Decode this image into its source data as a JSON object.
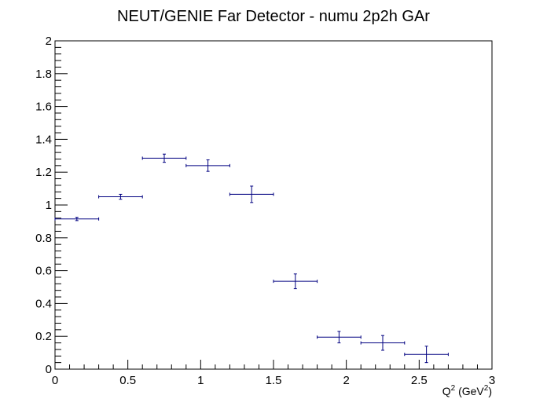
{
  "chart_data": {
    "type": "scatter",
    "title": "NEUT/GENIE Far Detector - numu 2p2h GAr",
    "xlabel": {
      "base": "Q",
      "sup1": "2",
      "mid": " (GeV",
      "sup2": "2",
      "end": ")"
    },
    "ylabel": "",
    "xlim": [
      0,
      3
    ],
    "ylim": [
      0,
      2
    ],
    "x_ticks": [
      "0",
      "0.5",
      "1",
      "1.5",
      "2",
      "2.5",
      "3"
    ],
    "y_ticks": [
      "0",
      "0.2",
      "0.4",
      "0.6",
      "0.8",
      "1",
      "1.2",
      "1.4",
      "1.6",
      "1.8",
      "2"
    ],
    "marker_color": "#000080",
    "series": [
      {
        "points": [
          {
            "x": 0.15,
            "xerr": 0.15,
            "y": 0.915,
            "yerr": 0.01
          },
          {
            "x": 0.45,
            "xerr": 0.15,
            "y": 1.05,
            "yerr": 0.015
          },
          {
            "x": 0.75,
            "xerr": 0.15,
            "y": 1.285,
            "yerr": 0.025
          },
          {
            "x": 1.05,
            "xerr": 0.15,
            "y": 1.24,
            "yerr": 0.035
          },
          {
            "x": 1.35,
            "xerr": 0.15,
            "y": 1.065,
            "yerr": 0.05
          },
          {
            "x": 1.65,
            "xerr": 0.15,
            "y": 0.535,
            "yerr": 0.045
          },
          {
            "x": 1.95,
            "xerr": 0.15,
            "y": 0.195,
            "yerr": 0.035
          },
          {
            "x": 2.25,
            "xerr": 0.15,
            "y": 0.16,
            "yerr": 0.045
          },
          {
            "x": 2.55,
            "xerr": 0.15,
            "y": 0.09,
            "yerr": 0.05
          }
        ]
      }
    ]
  }
}
